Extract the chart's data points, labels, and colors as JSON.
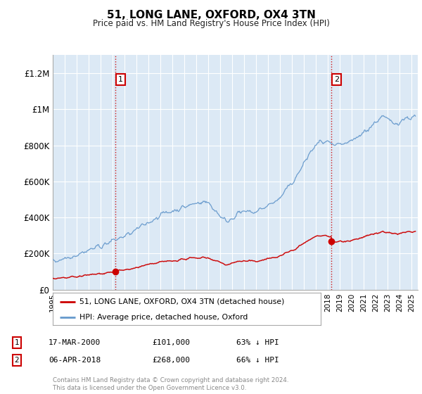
{
  "title": "51, LONG LANE, OXFORD, OX4 3TN",
  "subtitle": "Price paid vs. HM Land Registry's House Price Index (HPI)",
  "ylabel_ticks": [
    "£0",
    "£200K",
    "£400K",
    "£600K",
    "£800K",
    "£1M",
    "£1.2M"
  ],
  "ytick_values": [
    0,
    200000,
    400000,
    600000,
    800000,
    1000000,
    1200000
  ],
  "ylim": [
    0,
    1300000
  ],
  "xlim_start": 1995.0,
  "xlim_end": 2025.5,
  "background_color": "#dce9f5",
  "red_line_color": "#cc0000",
  "blue_line_color": "#6699cc",
  "sale1_x": 2000.21,
  "sale1_y": 101000,
  "sale2_x": 2018.26,
  "sale2_y": 268000,
  "legend_label1": "51, LONG LANE, OXFORD, OX4 3TN (detached house)",
  "legend_label2": "HPI: Average price, detached house, Oxford",
  "ann1_date": "17-MAR-2000",
  "ann1_price": "£101,000",
  "ann1_pct": "63% ↓ HPI",
  "ann2_date": "06-APR-2018",
  "ann2_price": "£268,000",
  "ann2_pct": "66% ↓ HPI",
  "footer": "Contains HM Land Registry data © Crown copyright and database right 2024.\nThis data is licensed under the Open Government Licence v3.0.",
  "xtick_years": [
    1995,
    1996,
    1997,
    1998,
    1999,
    2000,
    2001,
    2002,
    2003,
    2004,
    2005,
    2006,
    2007,
    2008,
    2009,
    2010,
    2011,
    2012,
    2013,
    2014,
    2015,
    2016,
    2017,
    2018,
    2019,
    2020,
    2021,
    2022,
    2023,
    2024,
    2025
  ]
}
